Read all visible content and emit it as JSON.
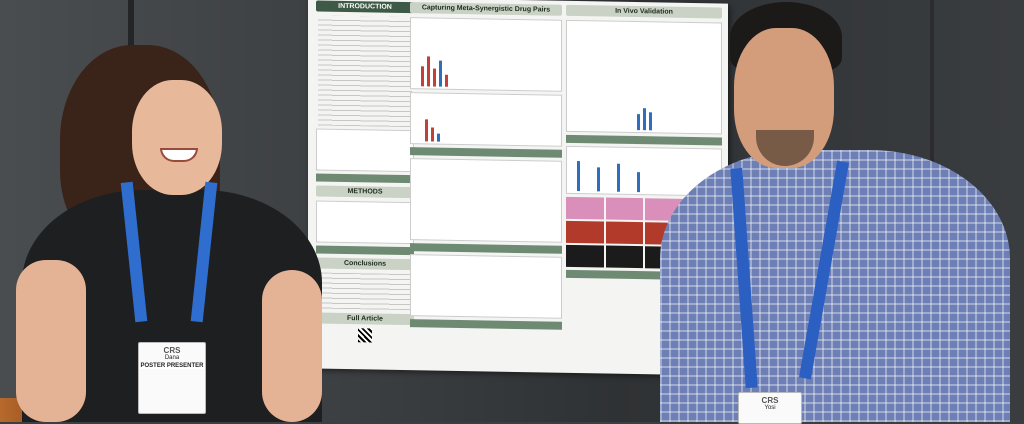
{
  "poster": {
    "intro_title": "INTRODUCTION",
    "methods_title": "METHODS",
    "conclusions_title": "Conclusions",
    "full_article_title": "Full Article",
    "section_synergy": "Capturing Meta-Synergistic Drug Pairs",
    "section_invivo": "In Vivo Validation"
  },
  "badge_left": {
    "logo": "CRS",
    "name": "Dana",
    "role": "POSTER PRESENTER"
  },
  "badge_right": {
    "logo": "CRS",
    "name": "Yosi"
  },
  "colors": {
    "lanyard": "#2f6ecf",
    "poster_accent": "#3e5a46"
  }
}
